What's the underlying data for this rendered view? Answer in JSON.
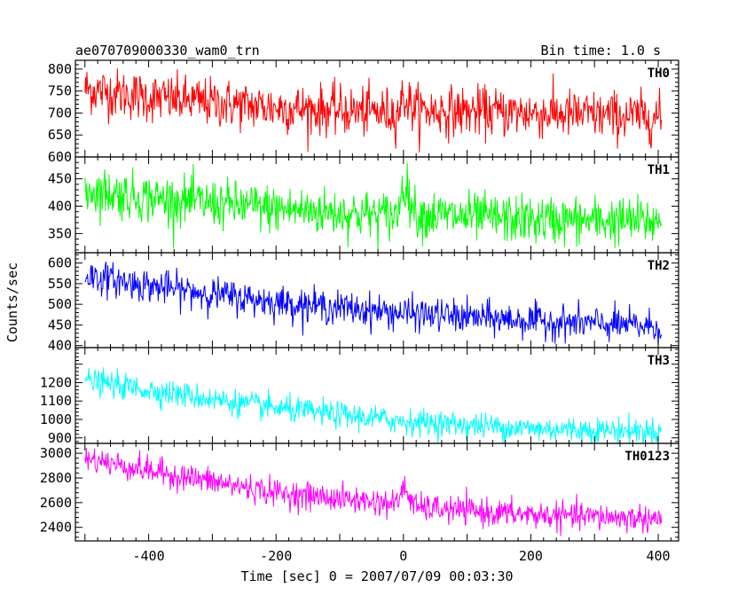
{
  "header": {
    "left_title": "ae070709000330_wam0_trn",
    "right_title": "Bin time: 1.0 s"
  },
  "chart_data": {
    "type": "line",
    "xlabel": "Time [sec] 0 = 2007/07/09 00:03:30",
    "ylabel": "Counts/sec",
    "xlim": [
      -515,
      432
    ],
    "x_range": [
      -500,
      405
    ],
    "x_ticks": [
      -400,
      -200,
      0,
      200,
      400
    ],
    "bin_time_s": 1.0,
    "panels": [
      {
        "name": "TH0",
        "color": "#ff0000",
        "ylim": [
          600,
          820
        ],
        "y_ticks": [
          600,
          650,
          700,
          750,
          800
        ],
        "trend": [
          [
            -500,
            755
          ],
          [
            -400,
            735
          ],
          [
            -200,
            712
          ],
          [
            -10,
            700
          ],
          [
            0,
            735
          ],
          [
            20,
            706
          ],
          [
            200,
            700
          ],
          [
            405,
            690
          ]
        ],
        "noise": 28
      },
      {
        "name": "TH1",
        "color": "#00ff00",
        "ylim": [
          315,
          490
        ],
        "y_ticks": [
          350,
          400,
          450
        ],
        "trend": [
          [
            -500,
            430
          ],
          [
            -400,
            415
          ],
          [
            -200,
            395
          ],
          [
            -10,
            382
          ],
          [
            0,
            445
          ],
          [
            20,
            385
          ],
          [
            200,
            375
          ],
          [
            405,
            372
          ]
        ],
        "noise": 22
      },
      {
        "name": "TH2",
        "color": "#0000ff",
        "ylim": [
          395,
          625
        ],
        "y_ticks": [
          400,
          450,
          500,
          550,
          600
        ],
        "trend": [
          [
            -500,
            570
          ],
          [
            -400,
            545
          ],
          [
            -200,
            505
          ],
          [
            0,
            478
          ],
          [
            200,
            460
          ],
          [
            405,
            445
          ]
        ],
        "noise": 20
      },
      {
        "name": "TH3",
        "color": "#00ffff",
        "ylim": [
          870,
          1390
        ],
        "y_ticks": [
          900,
          1000,
          1100,
          1200
        ],
        "trend": [
          [
            -500,
            1210
          ],
          [
            -400,
            1160
          ],
          [
            -200,
            1060
          ],
          [
            0,
            990
          ],
          [
            200,
            950
          ],
          [
            405,
            935
          ]
        ],
        "noise": 35
      },
      {
        "name": "TH0123",
        "color": "#ff00ff",
        "ylim": [
          2290,
          3080
        ],
        "y_ticks": [
          2400,
          2600,
          2800,
          3000
        ],
        "trend": [
          [
            -500,
            2960
          ],
          [
            -400,
            2860
          ],
          [
            -200,
            2680
          ],
          [
            -10,
            2590
          ],
          [
            0,
            2730
          ],
          [
            20,
            2560
          ],
          [
            200,
            2500
          ],
          [
            405,
            2470
          ]
        ],
        "noise": 55
      }
    ]
  }
}
